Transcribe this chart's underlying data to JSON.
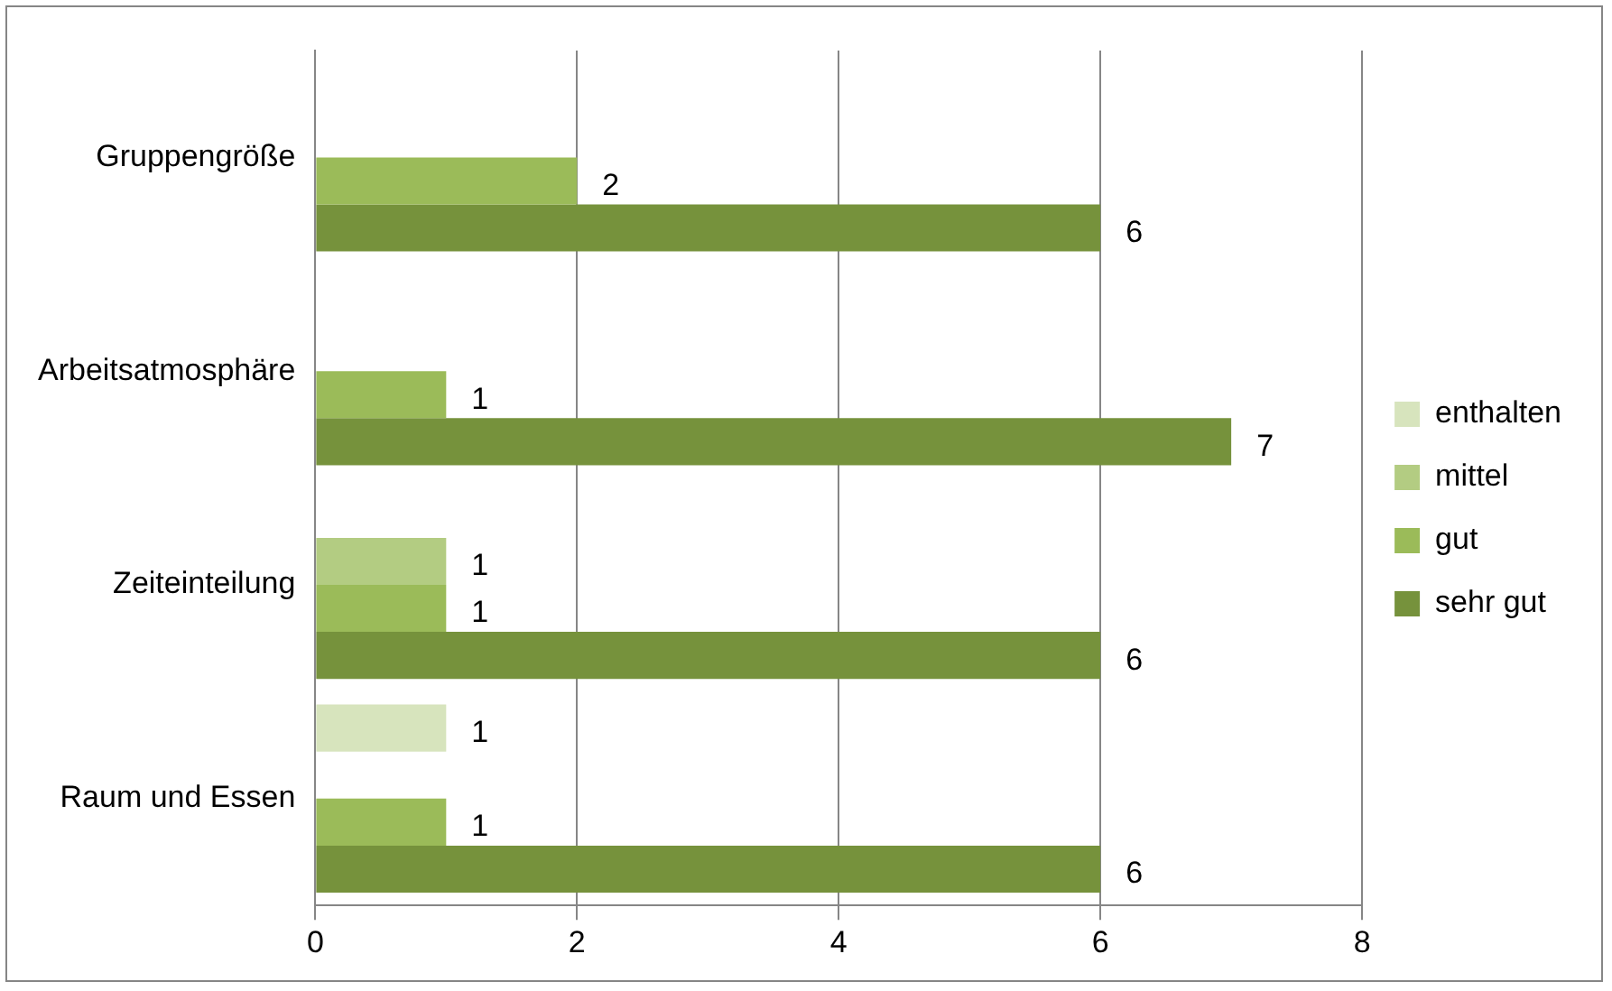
{
  "chart_data": {
    "type": "bar",
    "orientation": "horizontal",
    "categories": [
      "Gruppengröße",
      "Arbeitsatmosphäre",
      "Zeiteinteilung",
      "Raum und Essen"
    ],
    "series": [
      {
        "name": "enthalten",
        "color": "#d7e4bd",
        "values": [
          null,
          null,
          null,
          1
        ]
      },
      {
        "name": "mittel",
        "color": "#b3cc82",
        "values": [
          null,
          null,
          1,
          null
        ]
      },
      {
        "name": "gut",
        "color": "#9bbb59",
        "values": [
          2,
          1,
          1,
          1
        ]
      },
      {
        "name": "sehr gut",
        "color": "#76923c",
        "values": [
          6,
          7,
          6,
          6
        ]
      }
    ],
    "xlim": [
      0,
      8
    ],
    "xticks": [
      0,
      2,
      4,
      6,
      8
    ],
    "grid": "x",
    "legend": "right",
    "data_labels": true
  }
}
